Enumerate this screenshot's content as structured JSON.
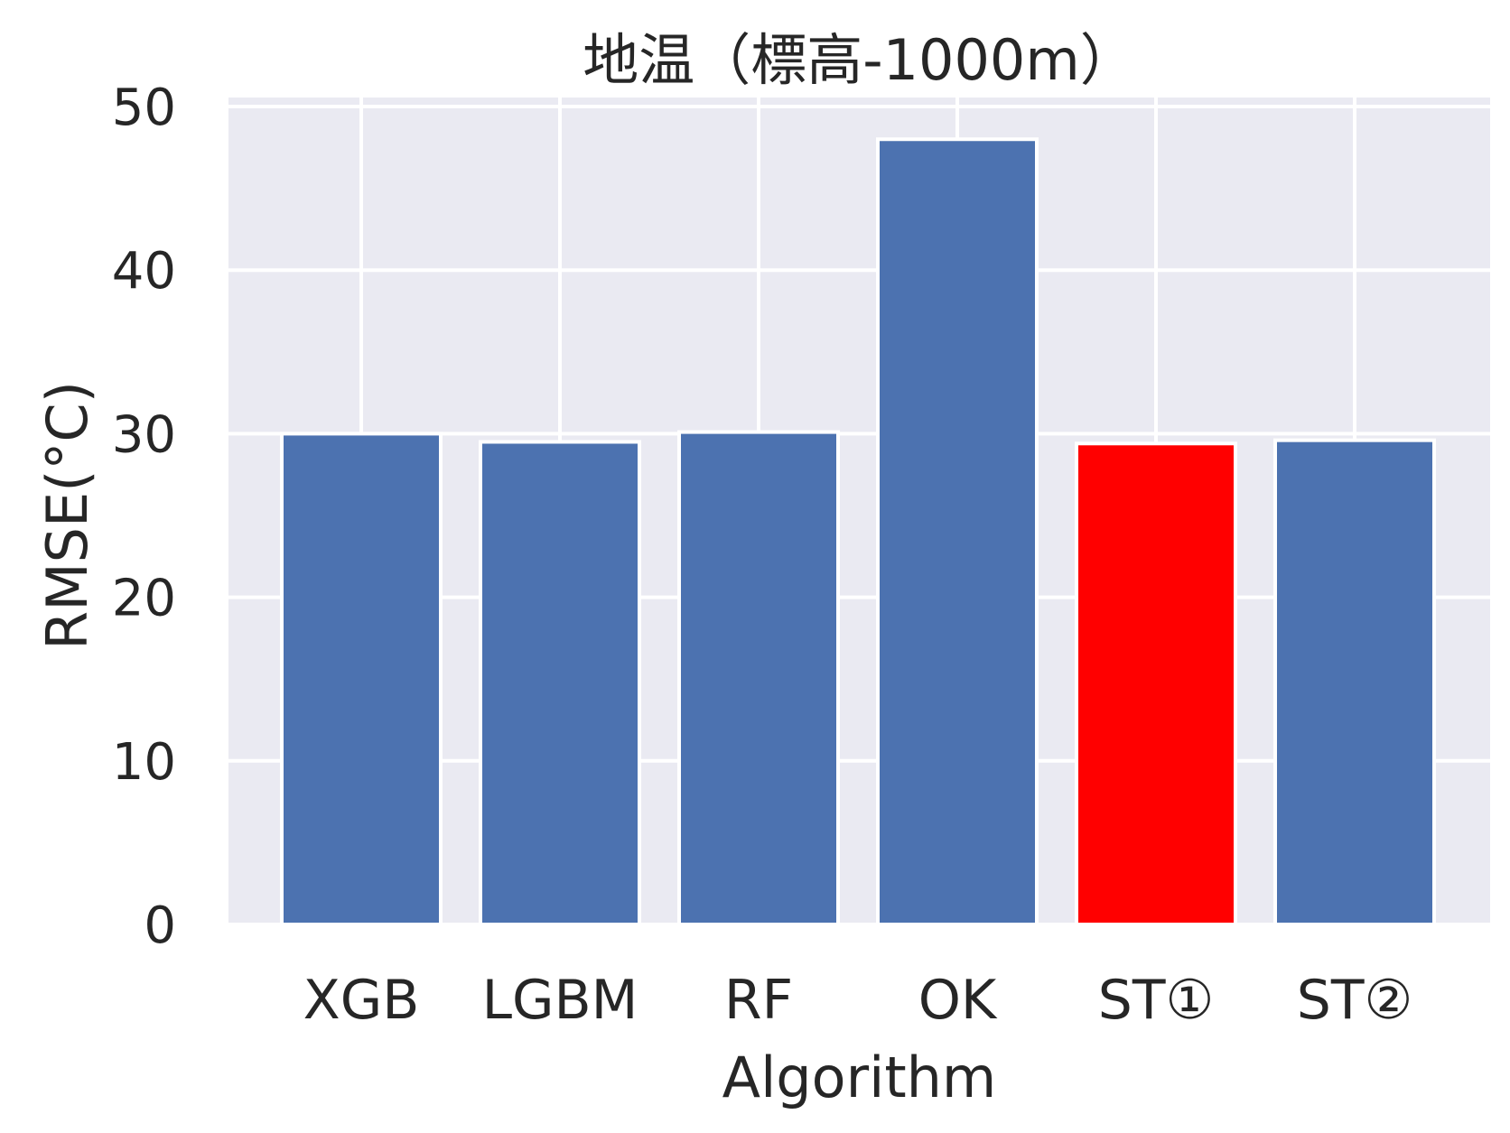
{
  "chart_data": {
    "type": "bar",
    "title": "地温（標高-1000m）",
    "xlabel": "Algorithm",
    "ylabel": "RMSE(°C)",
    "categories": [
      "XGB",
      "LGBM",
      "RF",
      "OK",
      "ST①",
      "ST②"
    ],
    "values": [
      30.0,
      29.5,
      30.1,
      48.0,
      29.4,
      29.6
    ],
    "colors": [
      "#4c72b0",
      "#4c72b0",
      "#4c72b0",
      "#4c72b0",
      "#ff0000",
      "#4c72b0"
    ],
    "ylim": [
      0,
      50
    ],
    "yticks": [
      "0",
      "10",
      "20",
      "30",
      "40",
      "50"
    ],
    "grid": true,
    "background": "#eaeaf2"
  }
}
